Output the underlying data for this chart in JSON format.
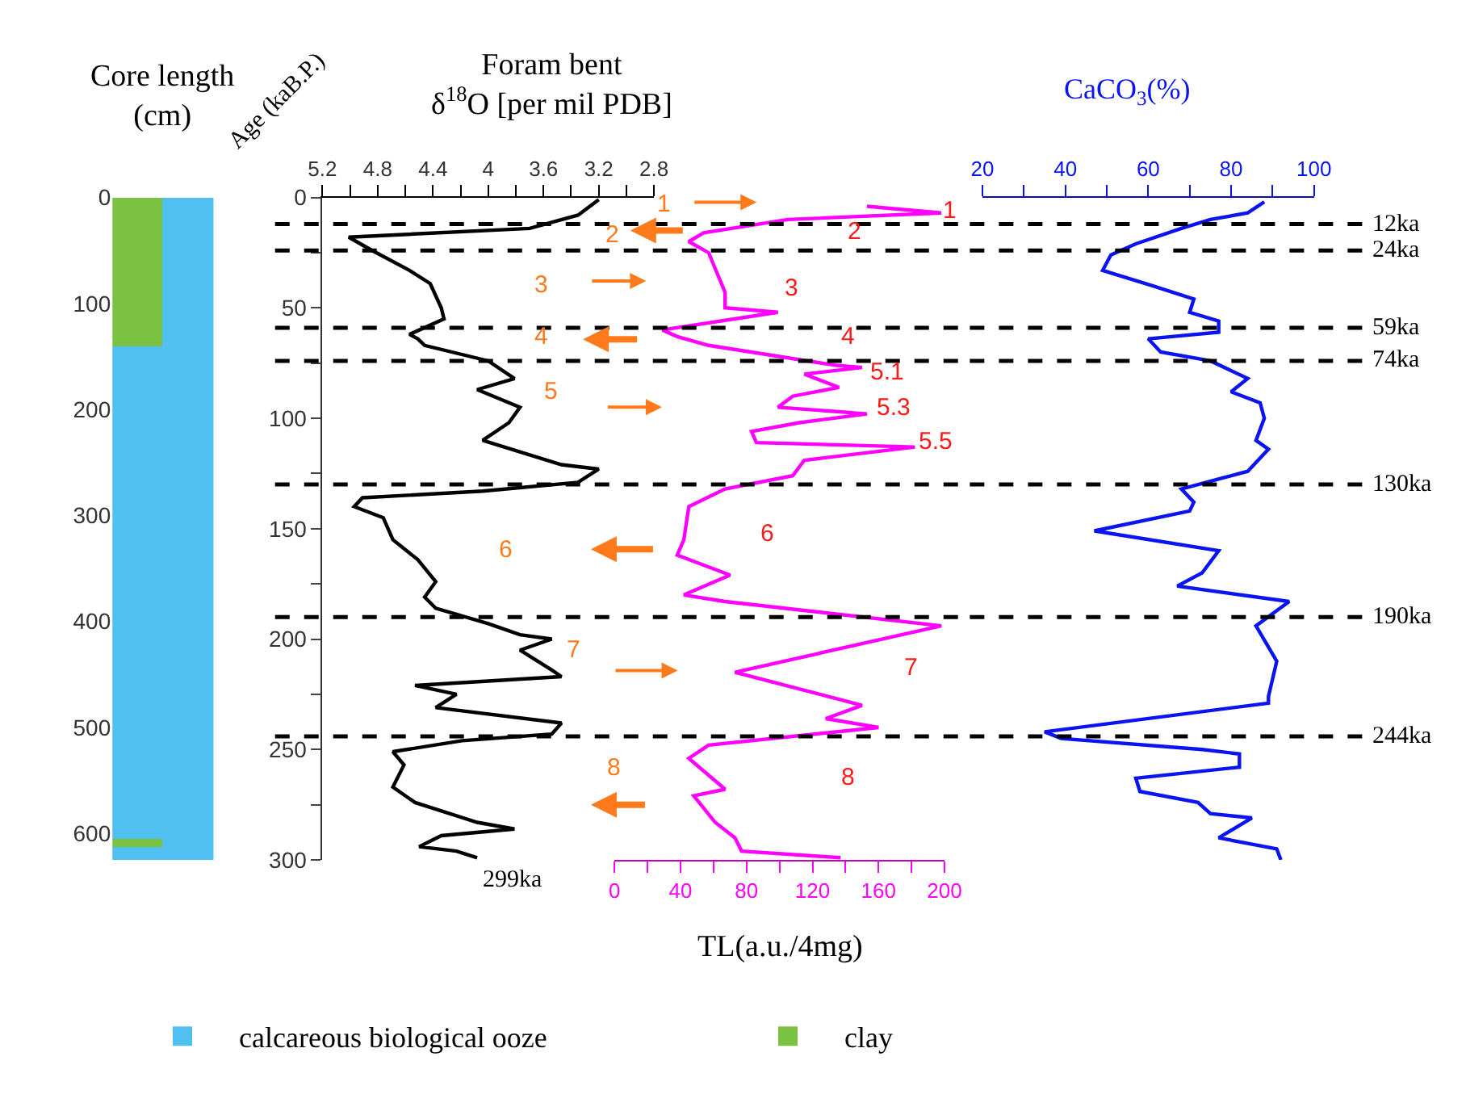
{
  "chart_data": [
    {
      "type": "bar",
      "stacked": true,
      "title": "Core length\n(cm)",
      "categories": [
        null,
        null
      ],
      "ylim": [
        625,
        0
      ],
      "yticks": [
        0,
        100,
        200,
        300,
        400,
        500,
        600
      ],
      "legend": "bottom",
      "series": [
        {
          "name": "clay",
          "colors": [
            "#7cc242",
            "#4fc0f0"
          ],
          "values": [
            140,
            140
          ]
        },
        {
          "name": "calcareous biological ooze",
          "color": "#4fc0f0",
          "values": [
            465,
            465
          ]
        },
        {
          "colors": [
            "#7cc242",
            "#4fc0f0"
          ],
          "values": [
            7,
            7
          ]
        },
        {
          "color": "#4fc0f0",
          "values": [
            13,
            13
          ]
        }
      ]
    },
    {
      "type": "line",
      "orientation": "horizontal",
      "ylabel": "Age (kaB.P.)",
      "ylim": [
        300,
        0
      ],
      "yticks": [
        0,
        {
          "value": 25,
          "label": null
        },
        50,
        {
          "value": 75,
          "label": null
        },
        100,
        {
          "value": 125,
          "label": null
        },
        150,
        {
          "value": 175,
          "label": null
        },
        200,
        {
          "value": 225,
          "label": null
        },
        250,
        {
          "value": 275,
          "label": null
        },
        300
      ],
      "xlabel": "Foram bent\nδ$^{18}$O [per mil PDB]",
      "xlim": [
        5.2,
        2.8
      ],
      "xticks": [
        5.2,
        {
          "value": 5.0,
          "label": null
        },
        4.8,
        {
          "value": 4.6,
          "label": null
        },
        4.4,
        {
          "value": 4.2,
          "label": null
        },
        4,
        {
          "value": 3.8,
          "label": null
        },
        3.6,
        {
          "value": 3.4,
          "label": null
        },
        3.2,
        {
          "value": 3.0,
          "label": null
        },
        2.8
      ],
      "series": [
        {
          "color": "#000000",
          "x": [
            1,
            8,
            14,
            18,
            24,
            33,
            39,
            50,
            55,
            62,
            64,
            67,
            74,
            82,
            87,
            95,
            102,
            110,
            121,
            123,
            129,
            133,
            136,
            140,
            145,
            155,
            164,
            174,
            181,
            186,
            193,
            198,
            200,
            205,
            214,
            217,
            221,
            225,
            231,
            238,
            243,
            246,
            251,
            257,
            267,
            274,
            283,
            286,
            289,
            294,
            296,
            299
          ],
          "values": [
            3.2,
            3.35,
            3.7,
            5.01,
            4.84,
            4.57,
            4.42,
            4.34,
            4.32,
            4.57,
            4.51,
            4.46,
            4.0,
            3.81,
            4.08,
            3.77,
            3.85,
            4.04,
            3.47,
            3.2,
            3.35,
            4.04,
            4.91,
            4.97,
            4.76,
            4.69,
            4.51,
            4.38,
            4.46,
            4.38,
            4.0,
            3.77,
            3.54,
            3.77,
            3.54,
            3.47,
            4.53,
            4.23,
            4.38,
            3.47,
            3.54,
            4.19,
            4.69,
            4.61,
            4.69,
            4.53,
            4.08,
            3.81,
            4.34,
            4.5,
            4.23,
            4.08
          ]
        }
      ],
      "ref_lines": [
        {
          "axis": "y",
          "value": 12,
          "line_style": "dashed"
        },
        {
          "axis": "y",
          "value": 24,
          "line_style": "dashed"
        },
        {
          "axis": "y",
          "value": 59,
          "line_style": "dashed"
        },
        {
          "axis": "y",
          "value": 74,
          "line_style": "dashed"
        },
        {
          "axis": "y",
          "value": 130,
          "line_style": "dashed"
        },
        {
          "axis": "y",
          "value": 190,
          "line_style": "dashed"
        },
        {
          "axis": "y",
          "value": 244,
          "line_style": "dashed"
        }
      ],
      "annotations": [
        "1",
        "2",
        "3",
        "4",
        "5",
        "6",
        "7",
        "8",
        "299ka"
      ]
    },
    {
      "type": "line",
      "orientation": "horizontal",
      "tick_labels": "x",
      "ylim": [
        300,
        0
      ],
      "xlabel": "TL(a.u./4mg)",
      "xlim": [
        0,
        200
      ],
      "xticks": [
        0,
        {
          "value": 20,
          "label": null
        },
        40,
        {
          "value": 60,
          "label": null
        },
        80,
        {
          "value": 100,
          "label": null
        },
        120,
        {
          "value": 140,
          "label": null
        },
        160,
        {
          "value": 180,
          "label": null
        },
        200
      ],
      "series": [
        {
          "color": "#ff00ff",
          "x": [
            4,
            7,
            10,
            16,
            20,
            25,
            43,
            50,
            52,
            60,
            63,
            67,
            76,
            77,
            80,
            86,
            90,
            95,
            98,
            102,
            106,
            111,
            113,
            119,
            126,
            132,
            140,
            155,
            162,
            171,
            180,
            183,
            194,
            215,
            230,
            236,
            240,
            248,
            254,
            268,
            271,
            283,
            290,
            296,
            299
          ],
          "values": [
            153,
            198,
            105,
            54,
            45,
            57,
            67,
            67,
            99,
            29,
            38,
            57,
            134,
            150,
            115,
            136,
            108,
            99,
            153,
            112,
            83,
            86,
            182,
            115,
            108,
            67,
            45,
            42,
            38,
            70,
            42,
            67,
            198,
            73,
            150,
            128,
            160,
            57,
            45,
            67,
            48,
            61,
            73,
            77,
            137
          ]
        }
      ],
      "annotations": [
        "1",
        "2",
        "3",
        "4",
        "5.1",
        "5.3",
        "5.5",
        "6",
        "7",
        "8"
      ]
    },
    {
      "type": "line",
      "orientation": "horizontal",
      "tick_labels": "x",
      "ylim": [
        300,
        0
      ],
      "xlabel": "CaCO$_{3}$(%)",
      "xlim": [
        20,
        100
      ],
      "xticks": [
        20,
        {
          "value": 30,
          "label": null
        },
        40,
        {
          "value": 50,
          "label": null
        },
        60,
        {
          "value": 70,
          "label": null
        },
        80,
        {
          "value": 90,
          "label": null
        },
        100
      ],
      "series": [
        {
          "color": "#0a14f0",
          "x": [
            2,
            7,
            10,
            14,
            21,
            26,
            33,
            40,
            46,
            52,
            56,
            61,
            64,
            70,
            74,
            82,
            88,
            93,
            100,
            110,
            114,
            124,
            127,
            132,
            138,
            142,
            151,
            160,
            170,
            176,
            183,
            194,
            210,
            226,
            229,
            242,
            245,
            250,
            252,
            258,
            263,
            269,
            274,
            279,
            281,
            290,
            295,
            300
          ],
          "values": [
            88,
            84,
            75,
            68,
            57,
            51,
            49,
            61,
            71,
            70,
            77,
            77,
            60,
            63,
            75,
            84,
            80,
            87,
            88,
            86,
            89,
            84,
            78,
            68,
            71,
            70,
            47,
            77,
            73,
            67,
            94,
            86,
            91,
            89,
            89,
            35,
            39,
            73,
            82,
            82,
            57,
            58,
            72,
            75,
            85,
            77,
            91,
            92
          ]
        }
      ],
      "ref_lines": [
        {
          "axis": "y",
          "value": 12,
          "label": "12ka",
          "line_style": "dashed"
        },
        {
          "axis": "y",
          "value": 24,
          "label": "24ka",
          "line_style": "dashed"
        },
        {
          "axis": "y",
          "value": 59,
          "label": "59ka",
          "line_style": "dashed"
        },
        {
          "axis": "y",
          "value": 74,
          "label": "74ka",
          "line_style": "dashed"
        },
        {
          "axis": "y",
          "value": 130,
          "label": "130ka",
          "line_style": "dashed"
        },
        {
          "axis": "y",
          "value": 190,
          "label": "190ka",
          "line_style": "dashed"
        },
        {
          "axis": "y",
          "value": 244,
          "label": "244ka",
          "line_style": "dashed"
        }
      ]
    }
  ]
}
